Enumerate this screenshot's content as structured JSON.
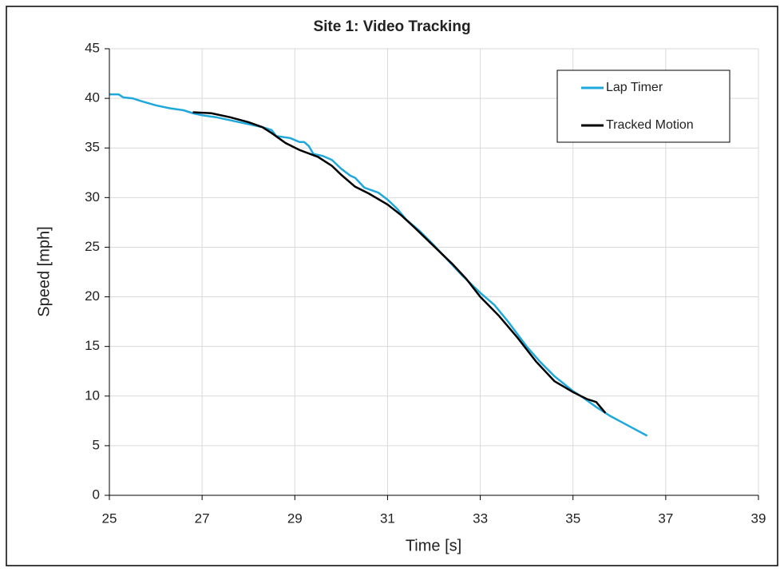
{
  "chart_data": {
    "type": "line",
    "title": "Site 1: Video Tracking",
    "x_label": "Time [s]",
    "y_label": "Speed [mph]",
    "xlim": [
      25,
      39
    ],
    "xticks": [
      25,
      27,
      29,
      31,
      33,
      35,
      37,
      39
    ],
    "ylim": [
      0,
      45
    ],
    "yticks": [
      0,
      5,
      10,
      15,
      20,
      25,
      30,
      35,
      40,
      45
    ],
    "grid": true,
    "series": [
      {
        "name": "Lap Timer",
        "color": "#1ea8dc",
        "x": [
          25,
          25.2,
          25.3,
          25.5,
          25.7,
          26,
          26.3,
          26.6,
          26.8,
          27,
          27.3,
          27.6,
          28,
          28.3,
          28.5,
          28.6,
          28.9,
          29.1,
          29.2,
          29.3,
          29.4,
          29.6,
          29.8,
          30,
          30.2,
          30.3,
          30.5,
          30.8,
          31,
          31.2,
          31.4,
          31.7,
          32,
          32.3,
          32.6,
          33,
          33.3,
          33.6,
          34,
          34.3,
          34.6,
          35,
          35.2,
          35.5,
          35.8,
          36.2,
          36.6
        ],
        "values": [
          40.4,
          40.4,
          40.1,
          40.0,
          39.7,
          39.3,
          39.0,
          38.8,
          38.5,
          38.3,
          38.1,
          37.8,
          37.4,
          37.1,
          36.8,
          36.2,
          36.0,
          35.6,
          35.6,
          35.2,
          34.4,
          34.2,
          33.8,
          32.9,
          32.2,
          32.0,
          31.0,
          30.5,
          29.8,
          28.9,
          27.8,
          26.6,
          25.2,
          23.7,
          22.2,
          20.4,
          19.2,
          17.5,
          15.0,
          13.4,
          12.0,
          10.5,
          9.9,
          8.9,
          8.0,
          7.0,
          6.0
        ]
      },
      {
        "name": "Tracked Motion",
        "color": "#000000",
        "x": [
          26.8,
          27.2,
          27.6,
          28,
          28.3,
          28.5,
          28.8,
          29.1,
          29.5,
          29.8,
          30,
          30.3,
          30.6,
          31,
          31.3,
          31.6,
          32,
          32.4,
          32.7,
          33,
          33.4,
          33.8,
          34.2,
          34.6,
          35,
          35.3,
          35.5,
          35.7
        ],
        "values": [
          38.6,
          38.5,
          38.1,
          37.6,
          37.1,
          36.5,
          35.5,
          34.8,
          34.1,
          33.2,
          32.3,
          31.1,
          30.4,
          29.3,
          28.2,
          26.9,
          25.1,
          23.3,
          21.8,
          20.0,
          18.1,
          15.9,
          13.5,
          11.5,
          10.4,
          9.7,
          9.4,
          8.3
        ]
      }
    ]
  }
}
